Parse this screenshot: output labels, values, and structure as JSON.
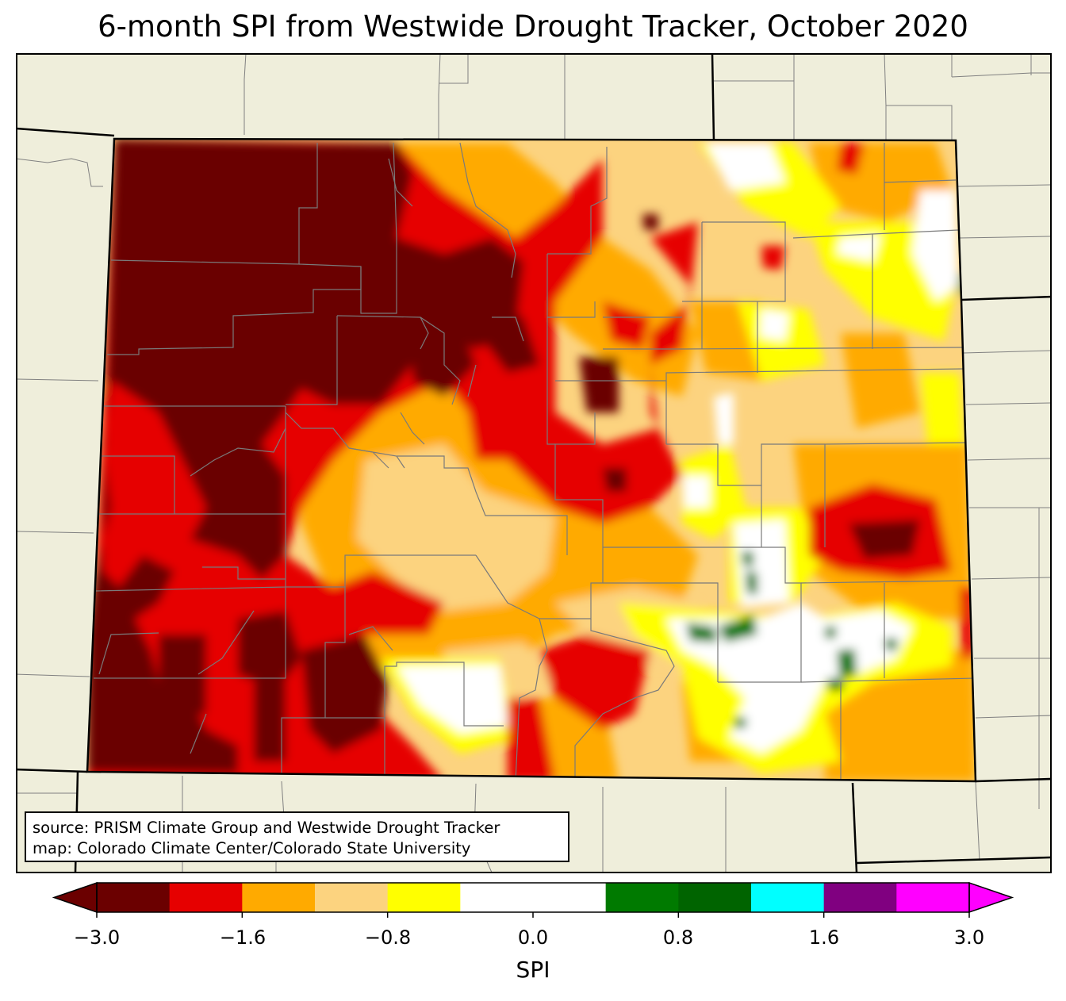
{
  "title": "6-month SPI from Westwide Drought Tracker, October 2020",
  "credits": {
    "source": "source: PRISM Climate Group and Westwide Drought Tracker",
    "map": "map: Colorado Climate Center/Colorado State University"
  },
  "colorbar": {
    "label": "SPI",
    "ticks": [
      "−3.0",
      "−1.6",
      "−0.8",
      "0.0",
      "0.8",
      "1.6",
      "3.0"
    ],
    "colors": [
      "#6b0000",
      "#e60000",
      "#ffaa00",
      "#fcd37f",
      "#ffff00",
      "#ffffff",
      "#ffffff",
      "#007a00",
      "#006400",
      "#00ffff",
      "#800080",
      "#ff00ff"
    ],
    "extend": "both"
  },
  "colors": {
    "background_land": "#efeedb",
    "county_lines": "#808080",
    "state_lines": "#000000"
  }
}
